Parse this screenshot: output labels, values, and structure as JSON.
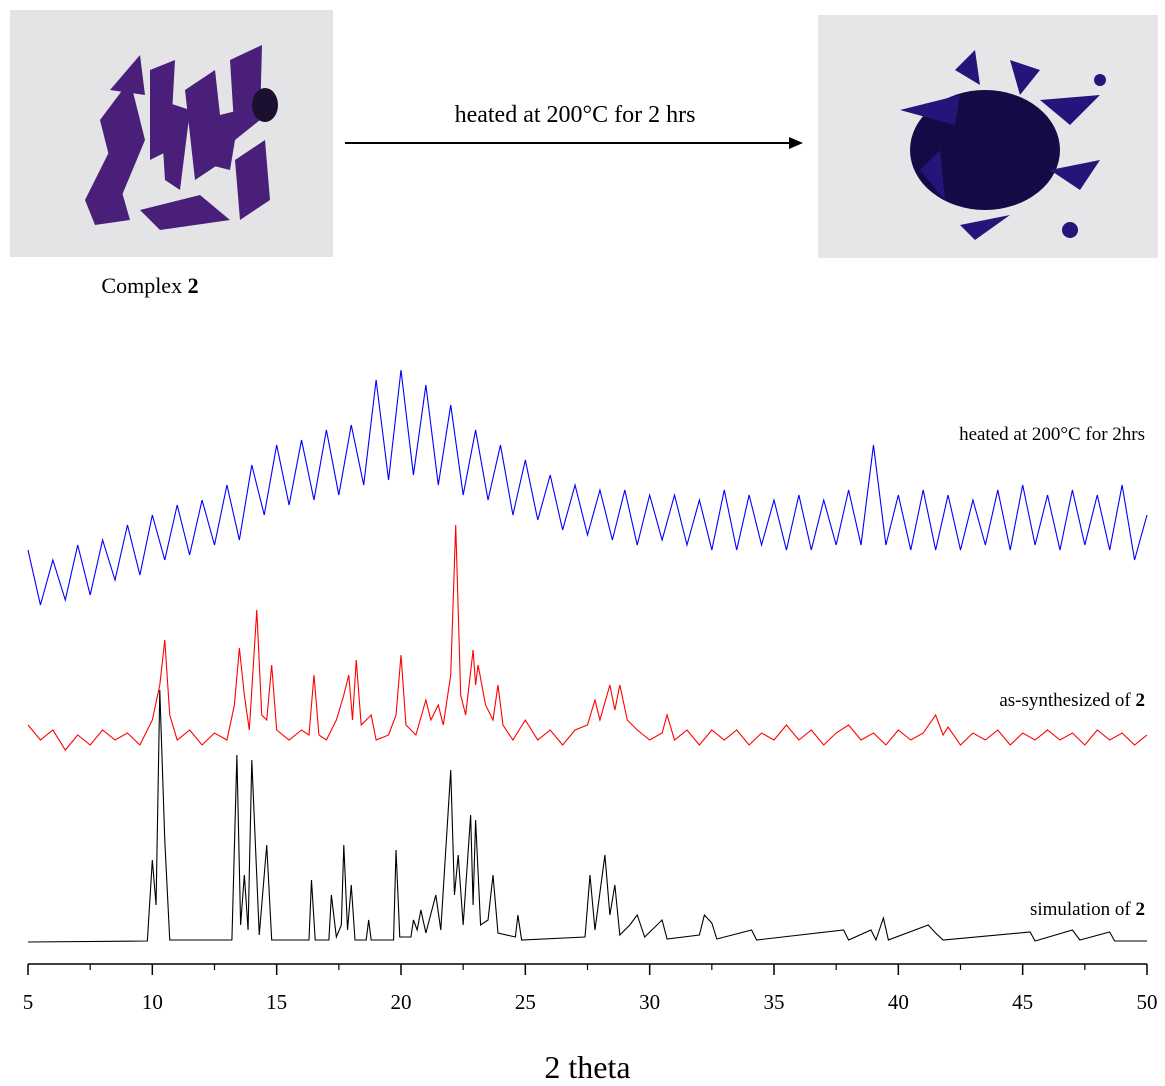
{
  "header": {
    "caption": "Complex",
    "caption_bold": "2",
    "arrow_label": "heated at 200°C for 2 hrs"
  },
  "chart_data": {
    "type": "line",
    "xlabel": "2 theta",
    "xlim": [
      5,
      50
    ],
    "xticks": [
      5,
      10,
      15,
      20,
      25,
      30,
      35,
      40,
      45,
      50
    ],
    "xminorticks": [
      7.5,
      12.5,
      17.5,
      22.5,
      27.5,
      32.5,
      37.5,
      42.5,
      47.5
    ],
    "ylim": [
      0,
      600
    ],
    "series": [
      {
        "name": "heated at 200°C for 2hrs",
        "color": "#0000ff",
        "x": [
          5,
          5.5,
          6,
          6.5,
          7,
          7.5,
          8,
          8.5,
          9,
          9.5,
          10,
          10.5,
          11,
          11.5,
          12,
          12.5,
          13,
          13.5,
          14,
          14.5,
          15,
          15.5,
          16,
          16.5,
          17,
          17.5,
          18,
          18.5,
          19,
          19.5,
          20,
          20.5,
          21,
          21.5,
          22,
          22.5,
          23,
          23.5,
          24,
          24.5,
          25,
          25.5,
          26,
          26.5,
          27,
          27.5,
          28,
          28.5,
          29,
          29.5,
          30,
          30.5,
          31,
          31.5,
          32,
          32.5,
          33,
          33.5,
          34,
          34.5,
          35,
          35.5,
          36,
          36.5,
          37,
          37.5,
          38,
          38.5,
          39,
          39.5,
          40,
          40.5,
          41,
          41.5,
          42,
          42.5,
          43,
          43.5,
          44,
          44.5,
          45,
          45.5,
          46,
          46.5,
          47,
          47.5,
          48,
          48.5,
          49,
          49.5,
          50
        ],
        "values": [
          395,
          340,
          385,
          345,
          400,
          350,
          405,
          365,
          420,
          370,
          430,
          385,
          440,
          390,
          445,
          400,
          460,
          405,
          480,
          430,
          500,
          440,
          505,
          445,
          515,
          450,
          520,
          460,
          565,
          465,
          575,
          470,
          560,
          460,
          540,
          450,
          515,
          445,
          500,
          430,
          485,
          425,
          470,
          415,
          460,
          410,
          455,
          405,
          455,
          400,
          450,
          405,
          450,
          400,
          445,
          395,
          455,
          395,
          450,
          400,
          445,
          395,
          450,
          395,
          445,
          400,
          455,
          400,
          500,
          400,
          450,
          395,
          455,
          395,
          450,
          395,
          445,
          400,
          455,
          395,
          460,
          400,
          450,
          395,
          455,
          400,
          450,
          395,
          460,
          385,
          430
        ]
      },
      {
        "name": "as-synthesized of 2",
        "color": "#ff0000",
        "x": [
          5,
          5.5,
          6,
          6.5,
          7,
          7.5,
          8,
          8.5,
          9,
          9.5,
          10,
          10.3,
          10.5,
          10.7,
          11,
          11.5,
          12,
          12.5,
          13,
          13.3,
          13.5,
          13.7,
          13.9,
          14.2,
          14.4,
          14.6,
          14.8,
          15,
          15.5,
          16,
          16.3,
          16.5,
          16.7,
          17,
          17.4,
          17.7,
          17.9,
          18.05,
          18.2,
          18.4,
          18.8,
          19,
          19.5,
          19.8,
          20,
          20.2,
          20.6,
          21,
          21.2,
          21.5,
          21.7,
          22,
          22.2,
          22.4,
          22.6,
          22.9,
          23,
          23.1,
          23.4,
          23.7,
          23.9,
          24.1,
          24.5,
          25,
          25.5,
          26,
          26.5,
          27,
          27.5,
          27.8,
          28,
          28.4,
          28.6,
          28.8,
          29.1,
          29.5,
          30,
          30.5,
          30.7,
          31,
          31.5,
          32,
          32.5,
          33,
          33.5,
          34,
          34.5,
          35,
          35.5,
          36,
          36.5,
          37,
          37.5,
          38,
          38.5,
          39,
          39.5,
          40,
          40.5,
          41,
          41.5,
          41.8,
          42,
          42.5,
          43,
          43.5,
          44,
          44.5,
          45,
          45.5,
          46,
          46.5,
          47,
          47.5,
          48,
          48.5,
          49,
          49.5,
          50
        ],
        "values": [
          220,
          205,
          215,
          195,
          210,
          200,
          215,
          205,
          212,
          200,
          225,
          260,
          305,
          230,
          205,
          215,
          200,
          212,
          205,
          240,
          297,
          250,
          215,
          335,
          230,
          225,
          280,
          215,
          205,
          215,
          210,
          270,
          210,
          205,
          225,
          250,
          270,
          225,
          285,
          220,
          230,
          205,
          210,
          230,
          290,
          220,
          210,
          245,
          225,
          240,
          220,
          270,
          420,
          250,
          230,
          295,
          260,
          280,
          240,
          225,
          260,
          220,
          205,
          225,
          205,
          215,
          200,
          215,
          220,
          245,
          225,
          260,
          235,
          260,
          225,
          215,
          205,
          212,
          230,
          205,
          215,
          200,
          215,
          205,
          215,
          200,
          212,
          205,
          220,
          205,
          215,
          200,
          212,
          220,
          205,
          212,
          200,
          215,
          205,
          212,
          230,
          210,
          218,
          200,
          212,
          205,
          215,
          200,
          212,
          205,
          215,
          205,
          212,
          200,
          215,
          205,
          212,
          200,
          210
        ]
      },
      {
        "name": "simulation of 2",
        "color": "#000000",
        "x": [
          5,
          9.8,
          10,
          10.15,
          10.3,
          10.5,
          10.7,
          13.2,
          13.4,
          13.55,
          13.7,
          13.85,
          14,
          14.3,
          14.6,
          14.8,
          16.3,
          16.4,
          16.55,
          17.1,
          17.2,
          17.4,
          17.6,
          17.7,
          17.85,
          18,
          18.15,
          18.6,
          18.7,
          18.8,
          19.7,
          19.8,
          19.95,
          20.4,
          20.5,
          20.65,
          20.8,
          21,
          21.4,
          21.6,
          22,
          22.15,
          22.3,
          22.5,
          22.8,
          22.9,
          23,
          23.2,
          23.5,
          23.7,
          23.9,
          24.6,
          24.7,
          24.85,
          27.4,
          27.6,
          27.8,
          28.2,
          28.4,
          28.6,
          28.8,
          29.2,
          29.5,
          29.8,
          30.5,
          30.7,
          32,
          32.2,
          32.5,
          32.7,
          34.1,
          34.3,
          37.8,
          38,
          38.9,
          39.1,
          39.4,
          39.6,
          41.2,
          41.5,
          41.8,
          45.3,
          45.5,
          47,
          47.3,
          48.5,
          48.7,
          50
        ],
        "values": [
          3,
          4,
          85,
          40,
          255,
          105,
          5,
          5,
          190,
          20,
          70,
          15,
          185,
          10,
          100,
          5,
          5,
          65,
          5,
          5,
          50,
          8,
          20,
          100,
          15,
          60,
          5,
          5,
          25,
          5,
          5,
          95,
          8,
          8,
          25,
          15,
          35,
          12,
          50,
          15,
          175,
          50,
          90,
          20,
          130,
          40,
          125,
          20,
          25,
          70,
          12,
          8,
          30,
          5,
          8,
          70,
          15,
          90,
          30,
          60,
          10,
          20,
          30,
          8,
          25,
          6,
          10,
          30,
          22,
          6,
          15,
          5,
          15,
          5,
          15,
          5,
          27,
          5,
          20,
          12,
          5,
          13,
          4,
          15,
          5,
          13,
          4,
          4
        ]
      }
    ]
  }
}
